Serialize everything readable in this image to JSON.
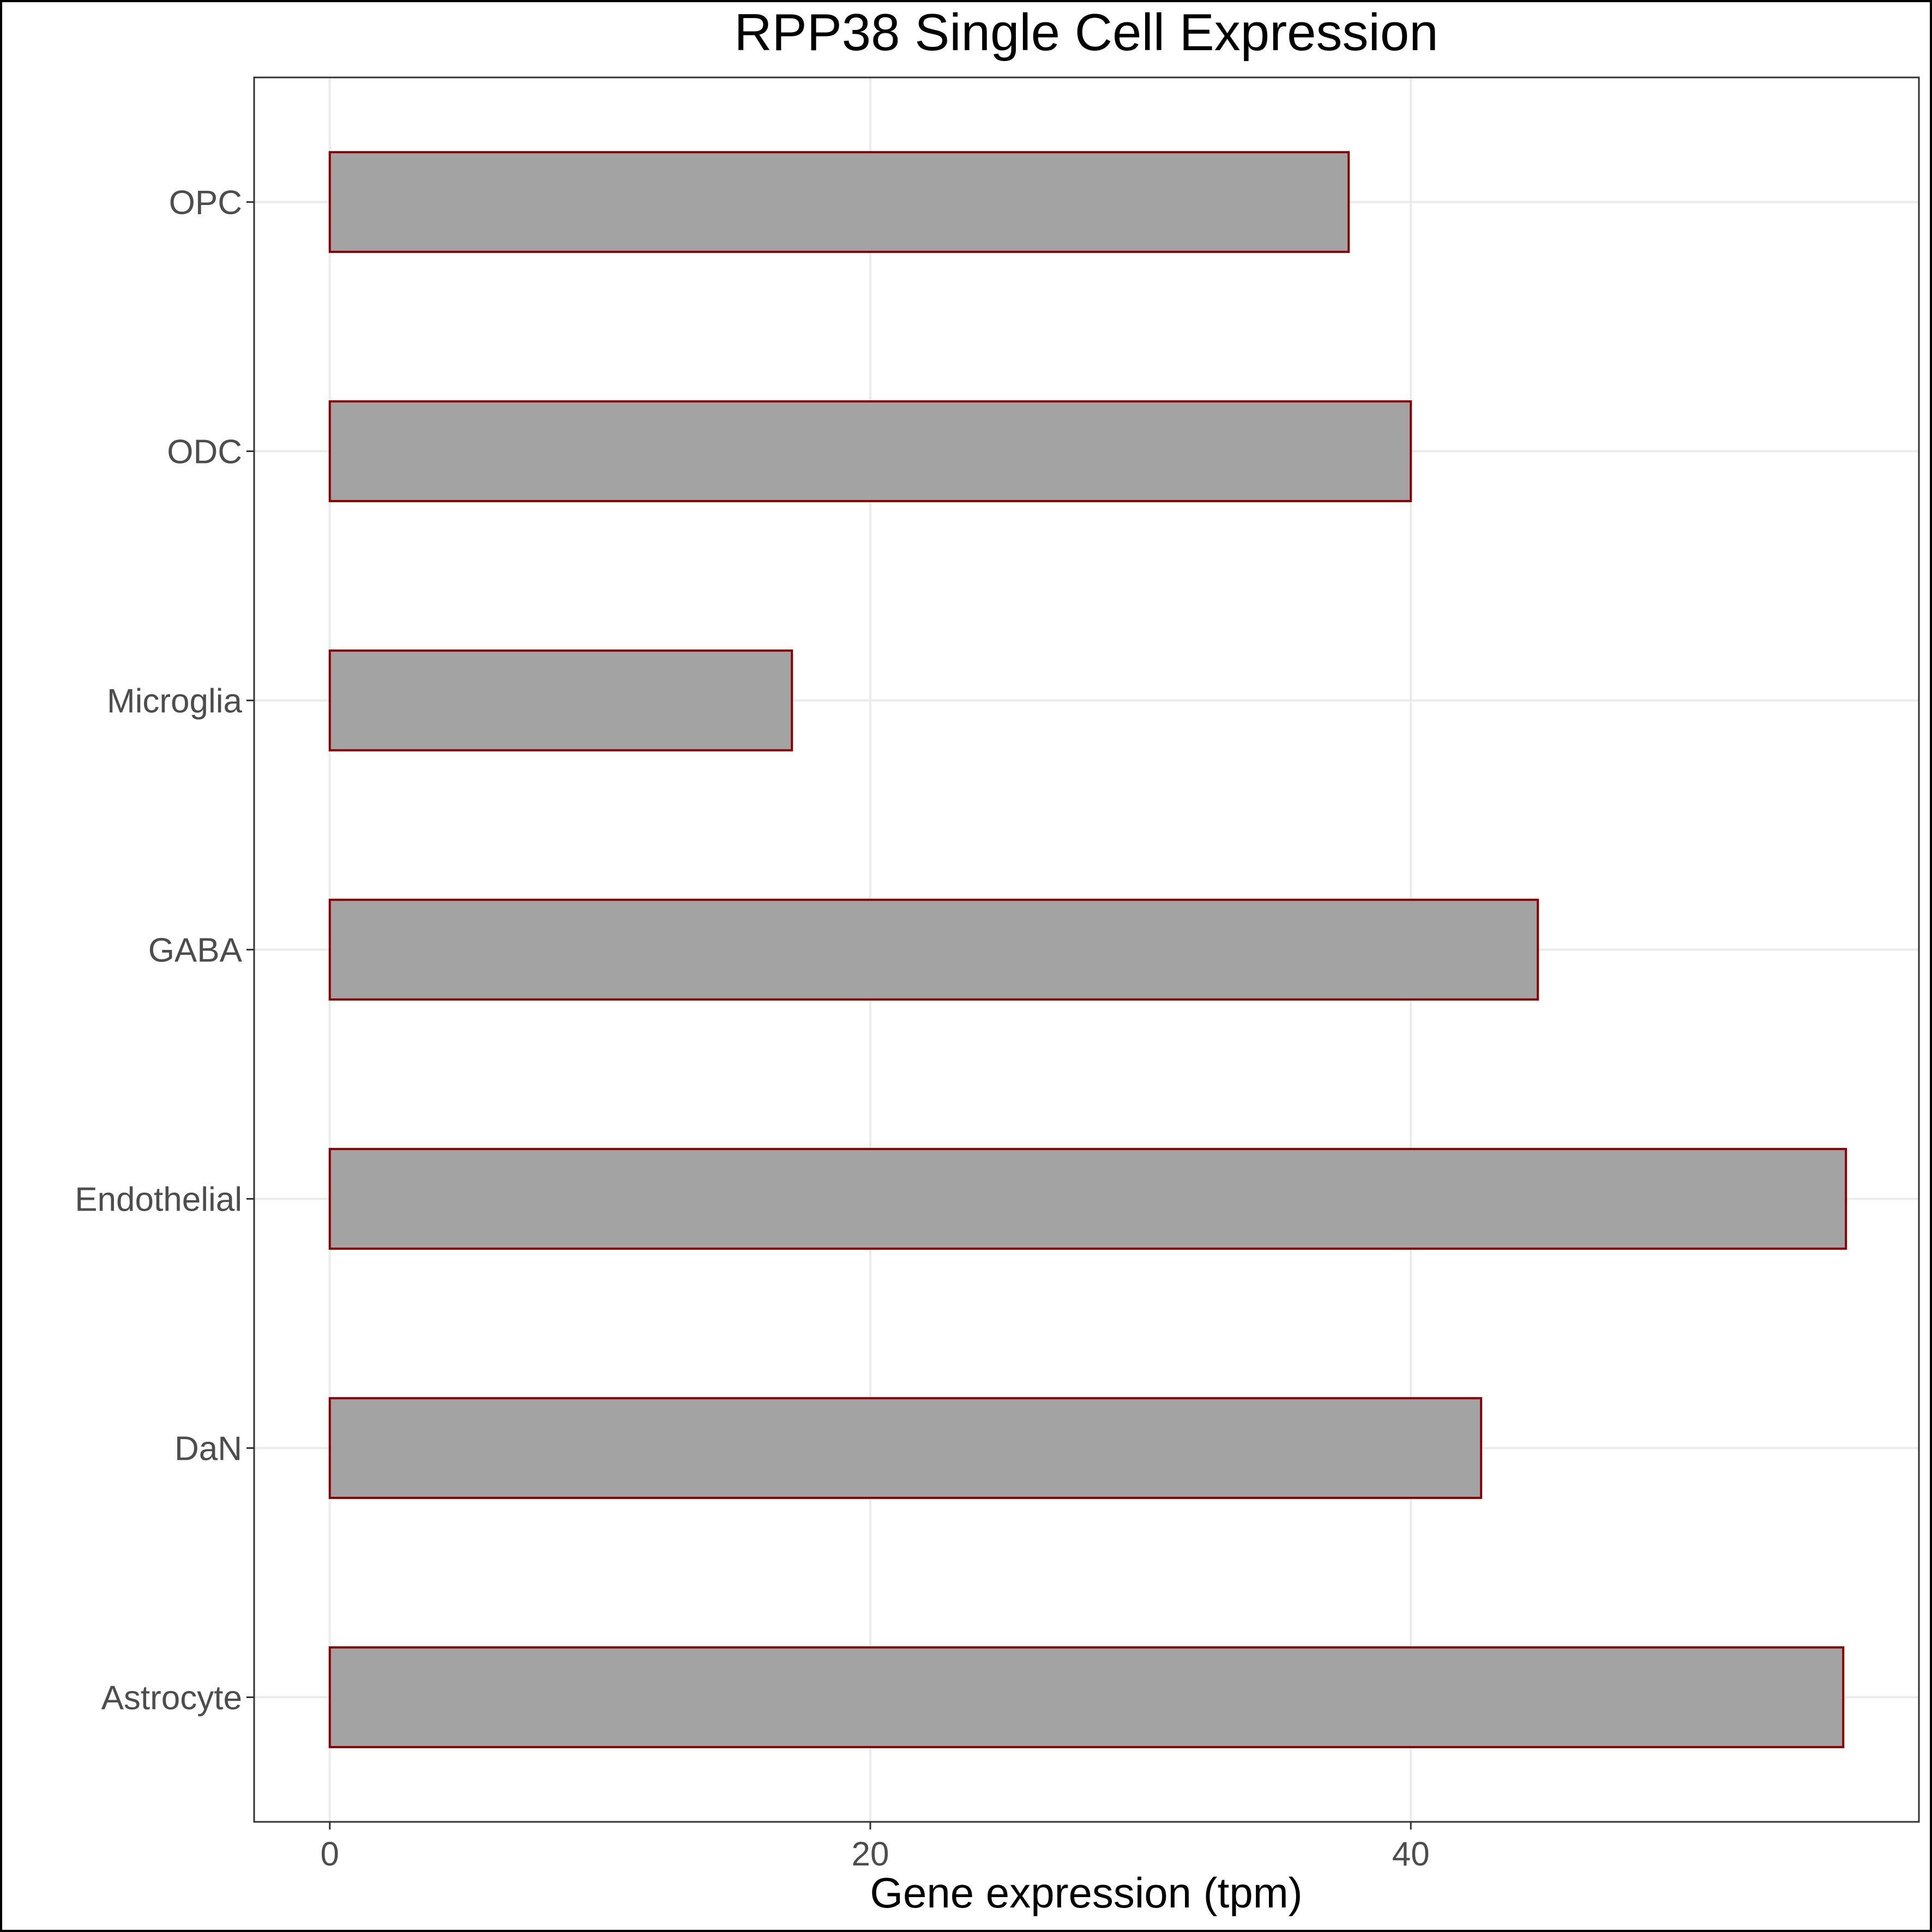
{
  "chart_data": {
    "type": "bar",
    "orientation": "horizontal",
    "title": "RPP38 Single Cell Expression",
    "xlabel": "Gene expression (tpm)",
    "ylabel": "",
    "categories": [
      "Astrocyte",
      "DaN",
      "Endothelial",
      "GABA",
      "Microglia",
      "ODC",
      "OPC"
    ],
    "values": [
      56.0,
      42.6,
      56.1,
      44.7,
      17.1,
      40.0,
      37.7
    ],
    "xlim": [
      -2.8,
      58.8
    ],
    "xticks": [
      0,
      20,
      40
    ],
    "xtick_labels": [
      "0",
      "20",
      "40"
    ],
    "grid": true,
    "legend": "none",
    "colors": {
      "bar_fill": "#a3a3a3",
      "bar_stroke": "#8b0000",
      "grid": "#ebebeb",
      "panel_border": "#333333",
      "tick_text": "#4d4d4d"
    }
  }
}
